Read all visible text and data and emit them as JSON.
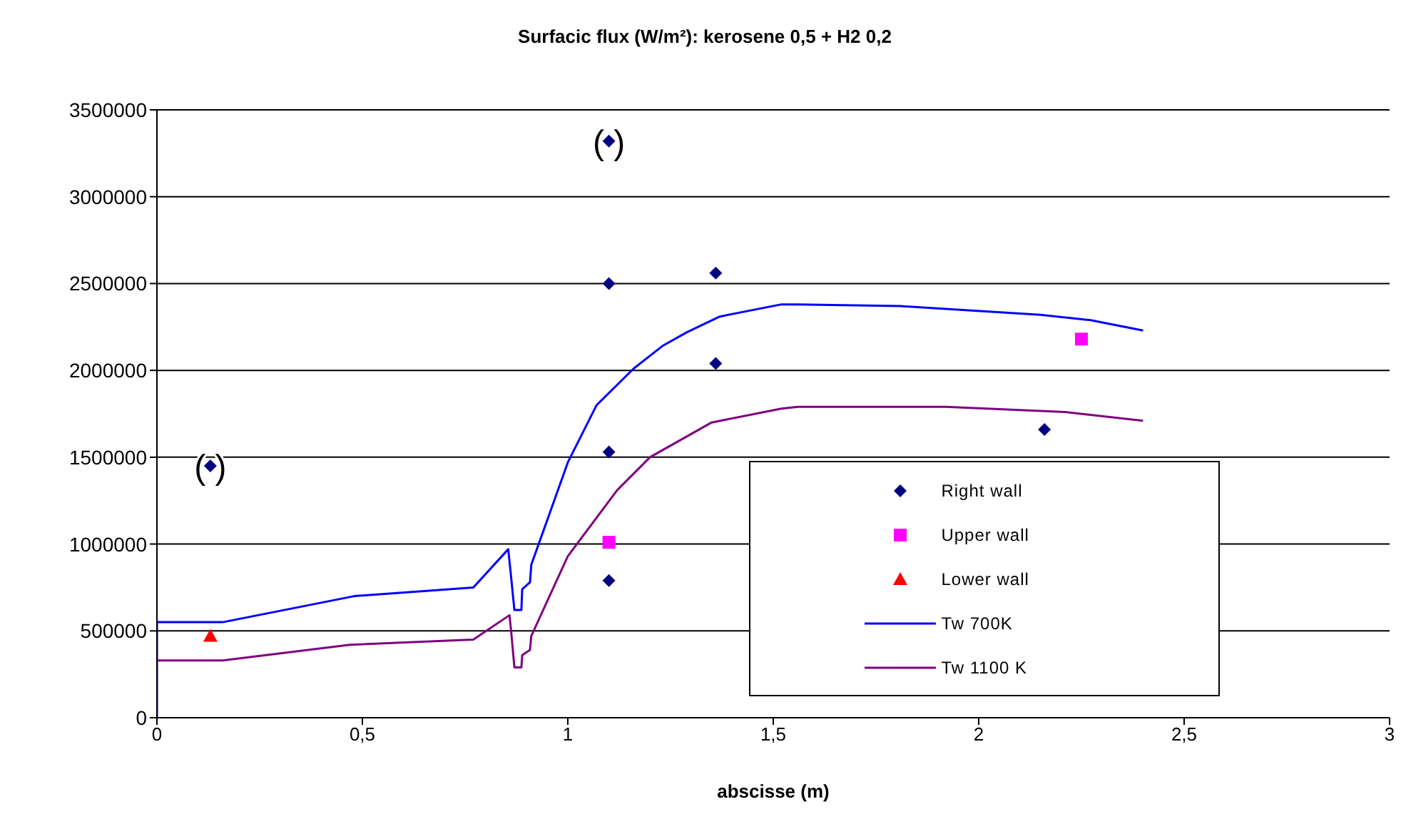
{
  "chart_data": {
    "type": "scatter",
    "title": "Surfacic flux (W/m²): kerosene 0,5 + H2 0,2",
    "xlabel": "abscisse (m)",
    "xlim": [
      0,
      3
    ],
    "xticks": [
      0,
      {
        "value": 0.5,
        "label": "0,5"
      },
      1,
      {
        "value": 1.5,
        "label": "1,5"
      },
      2,
      {
        "value": 2.5,
        "label": "2,5"
      },
      3
    ],
    "ylim": [
      0,
      3500000
    ],
    "yticks": [
      0,
      500000,
      1000000,
      1500000,
      2000000,
      2500000,
      3000000,
      3500000
    ],
    "grid": "y",
    "legend": "bottom right",
    "annotations": [
      {
        "text": "( )",
        "x": 0.13,
        "y": 1450000
      },
      {
        "text": "( )",
        "x": 1.1,
        "y": 3320000
      }
    ],
    "series": [
      {
        "name": "Right wall",
        "marker": "diamond",
        "color": "#000080",
        "x": [
          0.13,
          1.1,
          1.1,
          1.36,
          1.36,
          1.1,
          1.1,
          2.16
        ],
        "values": [
          1450000,
          3320000,
          2500000,
          2560000,
          2040000,
          1530000,
          790000,
          1660000
        ]
      },
      {
        "name": "Upper wall",
        "marker": "square",
        "color": "#ff00ff",
        "x": [
          1.1,
          2.25
        ],
        "values": [
          1010000,
          2180000
        ]
      },
      {
        "name": "Lower wall",
        "marker": "triangle",
        "color": "#ff0000",
        "x": [
          0.13
        ],
        "values": [
          470000
        ]
      },
      {
        "name": "Tw 700K",
        "type": "line",
        "marker": "none",
        "color": "#0000ff",
        "x": [
          0,
          0,
          0.16,
          0.48,
          0.77,
          0.855,
          0.862,
          0.87,
          0.887,
          0.889,
          0.908,
          0.911,
          1.0,
          1.07,
          1.16,
          1.23,
          1.29,
          1.37,
          1.52,
          1.56,
          1.81,
          2.15,
          2.27,
          2.4
        ],
        "values": [
          0,
          550000,
          550000,
          700000,
          750000,
          970000,
          810000,
          620000,
          620000,
          740000,
          780000,
          880000,
          1470000,
          1800000,
          2010000,
          2140000,
          2220000,
          2310000,
          2380000,
          2380000,
          2370000,
          2320000,
          2290000,
          2230000
        ]
      },
      {
        "name": "Tw 1100 K",
        "type": "line",
        "marker": "none",
        "color": "#800080",
        "x": [
          0,
          0.16,
          0.47,
          0.77,
          0.858,
          0.862,
          0.87,
          0.887,
          0.889,
          0.908,
          0.911,
          1.0,
          1.12,
          1.2,
          1.35,
          1.52,
          1.56,
          1.92,
          2.21,
          2.4
        ],
        "values": [
          330000,
          330000,
          420000,
          450000,
          590000,
          500000,
          290000,
          290000,
          360000,
          390000,
          470000,
          930000,
          1310000,
          1500000,
          1700000,
          1780000,
          1790000,
          1790000,
          1760000,
          1710000
        ]
      }
    ]
  }
}
